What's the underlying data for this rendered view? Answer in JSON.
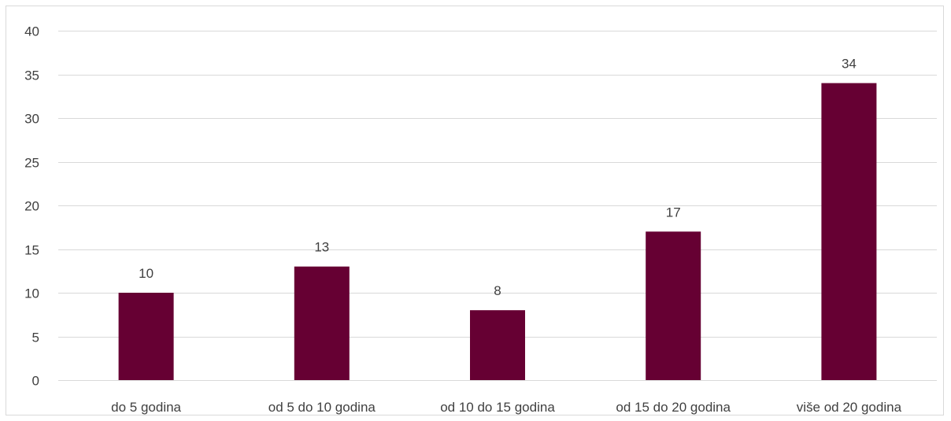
{
  "chart_data": {
    "type": "bar",
    "title": "",
    "xlabel": "",
    "ylabel": "",
    "categories": [
      "do 5 godina",
      "od 5 do 10 godina",
      "od 10 do 15 godina",
      "od 15 do 20 godina",
      "više od 20 godina"
    ],
    "values": [
      10,
      13,
      8,
      17,
      34
    ],
    "ylim": [
      0,
      40
    ],
    "yticks": [
      0,
      5,
      10,
      15,
      20,
      25,
      30,
      35,
      40
    ],
    "grid": true,
    "legend": "none",
    "bar_color": "#660033",
    "gridline_color": "#d9d9d9",
    "text_color": "#404040"
  }
}
